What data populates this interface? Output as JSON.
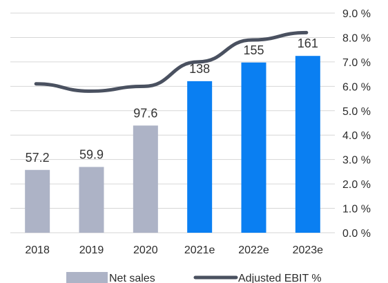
{
  "chart_data": {
    "type": "bar",
    "categories": [
      "2018",
      "2019",
      "2020",
      "2021e",
      "2022e",
      "2023e"
    ],
    "series": [
      {
        "name": "Net sales",
        "type": "bar",
        "values": [
          57.2,
          59.9,
          97.6,
          138,
          155,
          161
        ],
        "data_labels": [
          "57.2",
          "59.9",
          "97.6",
          "138",
          "155",
          "161"
        ],
        "colors": [
          "#adb3c6",
          "#adb3c6",
          "#adb3c6",
          "#0a7ff2",
          "#0a7ff2",
          "#0a7ff2"
        ]
      },
      {
        "name": "Adjusted EBIT %",
        "type": "line",
        "axis": "right",
        "values": [
          6.1,
          5.8,
          6.0,
          7.0,
          7.9,
          8.2
        ],
        "color": "#4a5160"
      }
    ],
    "left_axis": {
      "ylim": [
        0,
        200
      ],
      "visible": false
    },
    "right_axis": {
      "ylim": [
        0,
        9
      ],
      "ticks": [
        "0.0 %",
        "1.0 %",
        "2.0 %",
        "3.0 %",
        "4.0 %",
        "5.0 %",
        "6.0 %",
        "7.0 %",
        "8.0 %",
        "9.0 %"
      ]
    },
    "grid": true,
    "legend": {
      "position": "bottom",
      "items": [
        {
          "label": "Net sales",
          "symbol": "rect",
          "color": "#adb3c6"
        },
        {
          "label": "Adjusted EBIT %",
          "symbol": "line",
          "color": "#4a5160"
        }
      ]
    }
  }
}
